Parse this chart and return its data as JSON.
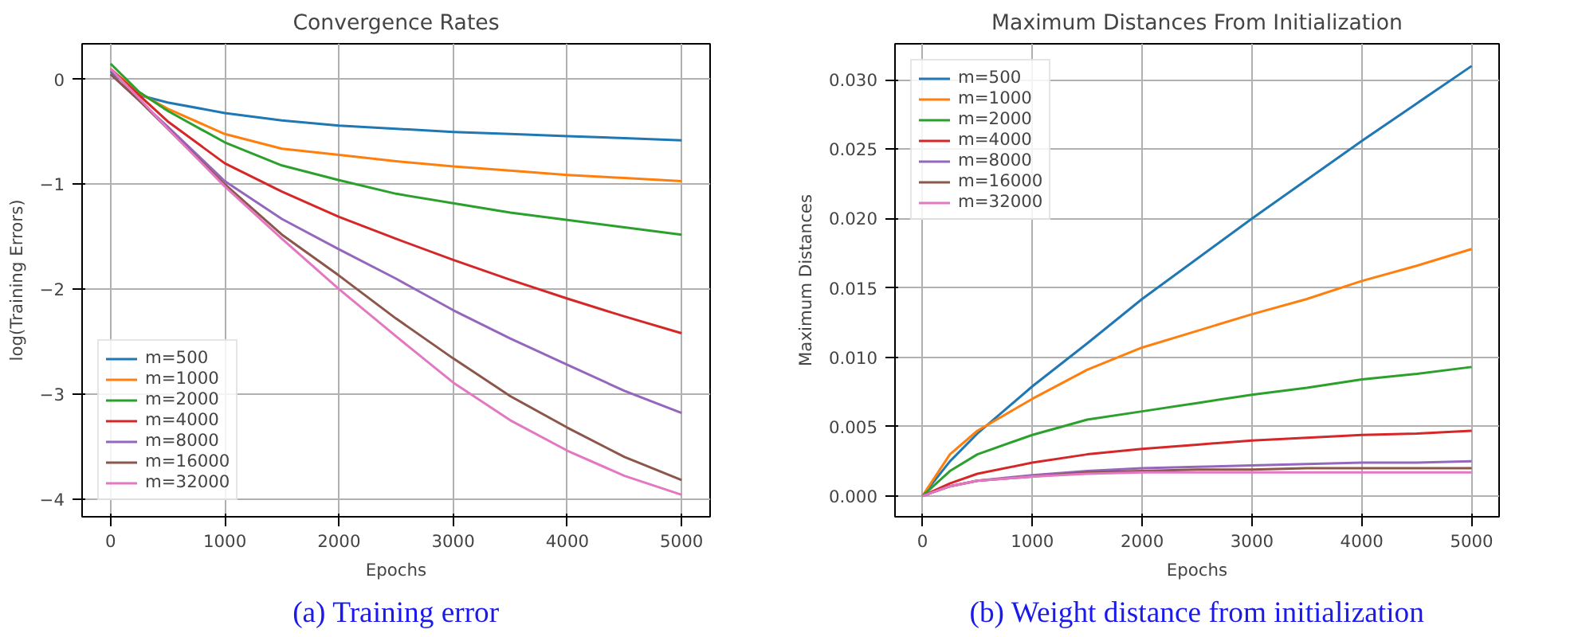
{
  "chart_data": [
    {
      "type": "line",
      "title": "Convergence Rates",
      "xlabel": "Epochs",
      "ylabel": "log(Training Errors)",
      "annotations": [
        "(a) Training error"
      ],
      "x": [
        0,
        250,
        500,
        1000,
        1500,
        2000,
        2500,
        3000,
        3500,
        4000,
        4500,
        5000
      ],
      "xlim": [
        -250,
        5250
      ],
      "ylim": [
        -4.17,
        0.34
      ],
      "xticks": [
        0,
        1000,
        2000,
        3000,
        4000,
        5000
      ],
      "yticks": [
        0,
        {
          "value": -1,
          "label": "−1"
        },
        {
          "value": -2,
          "label": "−2"
        },
        {
          "value": -3,
          "label": "−3"
        },
        {
          "value": -4,
          "label": "−4"
        }
      ],
      "grid": true,
      "legend": "bottom left",
      "series": [
        {
          "name": "m=500",
          "color": "#1f77b4",
          "values": [
            0.08,
            -0.15,
            -0.22,
            -0.32,
            -0.39,
            -0.44,
            -0.47,
            -0.5,
            -0.52,
            -0.54,
            -0.56,
            -0.58
          ]
        },
        {
          "name": "m=1000",
          "color": "#ff7f0e",
          "values": [
            0.1,
            -0.13,
            -0.28,
            -0.52,
            -0.66,
            -0.72,
            -0.78,
            -0.83,
            -0.87,
            -0.91,
            -0.94,
            -0.97
          ]
        },
        {
          "name": "m=2000",
          "color": "#2ca02c",
          "values": [
            0.15,
            -0.12,
            -0.3,
            -0.6,
            -0.82,
            -0.96,
            -1.09,
            -1.18,
            -1.27,
            -1.34,
            -1.41,
            -1.48
          ]
        },
        {
          "name": "m=4000",
          "color": "#d62728",
          "values": [
            0.1,
            -0.15,
            -0.4,
            -0.8,
            -1.07,
            -1.31,
            -1.52,
            -1.72,
            -1.91,
            -2.09,
            -2.26,
            -2.42
          ]
        },
        {
          "name": "m=8000",
          "color": "#9467bd",
          "values": [
            0.05,
            -0.2,
            -0.45,
            -0.97,
            -1.33,
            -1.62,
            -1.9,
            -2.2,
            -2.47,
            -2.72,
            -2.97,
            -3.18
          ]
        },
        {
          "name": "m=16000",
          "color": "#8c564b",
          "values": [
            0.05,
            -0.2,
            -0.47,
            -1.0,
            -1.48,
            -1.87,
            -2.28,
            -2.66,
            -3.02,
            -3.32,
            -3.6,
            -3.82
          ]
        },
        {
          "name": "m=32000",
          "color": "#e377c2",
          "values": [
            0.1,
            -0.18,
            -0.47,
            -1.02,
            -1.52,
            -2.0,
            -2.45,
            -2.89,
            -3.25,
            -3.54,
            -3.78,
            -3.96
          ]
        }
      ]
    },
    {
      "type": "line",
      "title": "Maximum Distances From Initialization",
      "xlabel": "Epochs",
      "ylabel": "Maximum Distances",
      "annotations": [
        "(b) Weight distance from initialization"
      ],
      "x": [
        0,
        250,
        500,
        1000,
        1500,
        2000,
        2500,
        3000,
        3500,
        4000,
        4500,
        5000
      ],
      "xlim": [
        -250,
        5250
      ],
      "ylim": [
        -0.0015,
        0.0326
      ],
      "xticks": [
        0,
        1000,
        2000,
        3000,
        4000,
        5000
      ],
      "yticks": [
        {
          "value": 0,
          "label": "0.000"
        },
        {
          "value": 0.005,
          "label": "0.005"
        },
        {
          "value": 0.01,
          "label": "0.010"
        },
        {
          "value": 0.015,
          "label": "0.015"
        },
        {
          "value": 0.02,
          "label": "0.020"
        },
        {
          "value": 0.025,
          "label": "0.025"
        },
        {
          "value": 0.03,
          "label": "0.030"
        }
      ],
      "grid": true,
      "legend": "top left",
      "series": [
        {
          "name": "m=500",
          "color": "#1f77b4",
          "values": [
            0,
            0.0025,
            0.0045,
            0.0079,
            0.011,
            0.0142,
            0.0171,
            0.02,
            0.0228,
            0.0256,
            0.0283,
            0.031
          ]
        },
        {
          "name": "m=1000",
          "color": "#ff7f0e",
          "values": [
            0,
            0.003,
            0.0047,
            0.007,
            0.0091,
            0.0107,
            0.0119,
            0.0131,
            0.0142,
            0.0155,
            0.0166,
            0.0178
          ]
        },
        {
          "name": "m=2000",
          "color": "#2ca02c",
          "values": [
            0,
            0.0018,
            0.003,
            0.0044,
            0.0055,
            0.0061,
            0.0067,
            0.0073,
            0.0078,
            0.0084,
            0.0088,
            0.0093
          ]
        },
        {
          "name": "m=4000",
          "color": "#d62728",
          "values": [
            0,
            0.0009,
            0.0016,
            0.0024,
            0.003,
            0.0034,
            0.0037,
            0.004,
            0.0042,
            0.0044,
            0.0045,
            0.0047
          ]
        },
        {
          "name": "m=8000",
          "color": "#9467bd",
          "values": [
            0,
            0.0007,
            0.0011,
            0.0015,
            0.0018,
            0.002,
            0.0021,
            0.0022,
            0.0023,
            0.0024,
            0.0024,
            0.0025
          ]
        },
        {
          "name": "m=16000",
          "color": "#8c564b",
          "values": [
            0,
            0.0007,
            0.0011,
            0.0014,
            0.0017,
            0.0018,
            0.0019,
            0.0019,
            0.002,
            0.002,
            0.002,
            0.002
          ]
        },
        {
          "name": "m=32000",
          "color": "#e377c2",
          "values": [
            0,
            0.0007,
            0.0011,
            0.0014,
            0.0016,
            0.0017,
            0.0017,
            0.0017,
            0.0017,
            0.0017,
            0.0017,
            0.0017
          ]
        }
      ]
    }
  ]
}
